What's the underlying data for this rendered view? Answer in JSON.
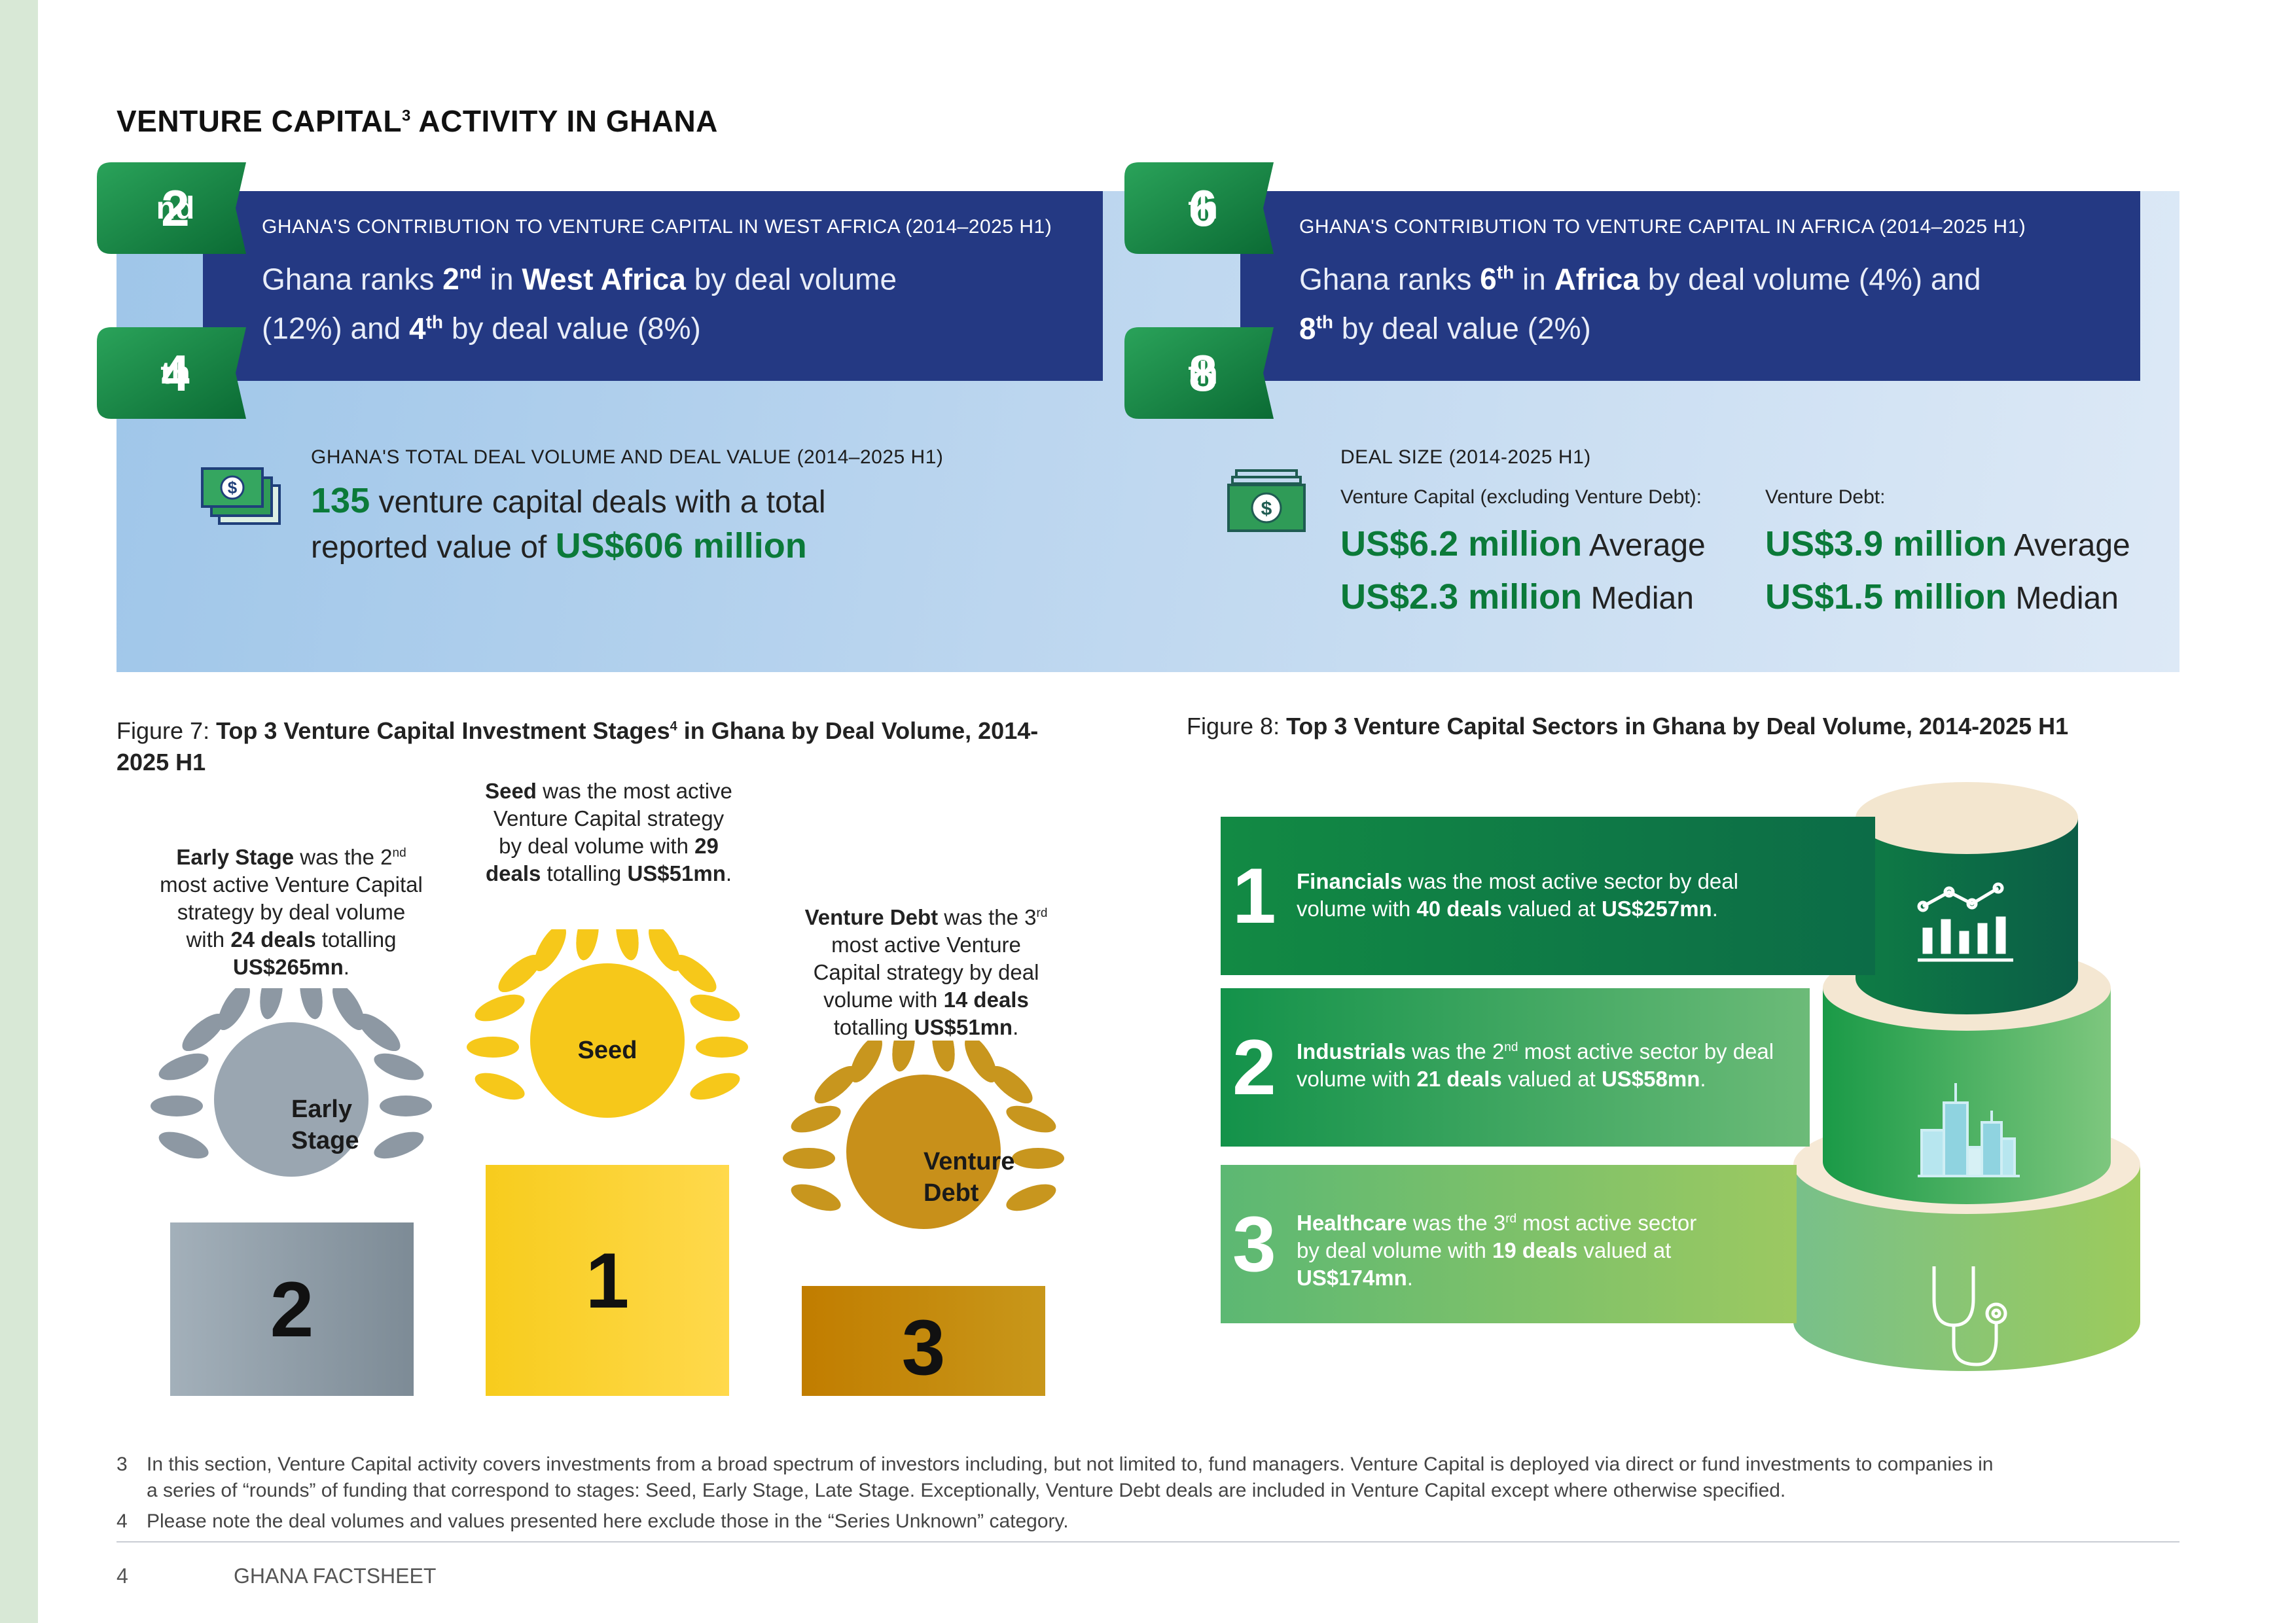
{
  "page": {
    "title": "VENTURE CAPITAL",
    "title_sup": "3",
    "title_rest": " ACTIVITY IN GHANA",
    "page_number": "4",
    "footer_label": "GHANA FACTSHEET"
  },
  "colors": {
    "navy": "#243983",
    "green": "#1a8a48",
    "gold": "#c8961e",
    "silver": "#8d98a3"
  },
  "west_africa": {
    "rank1": "2",
    "rank1_sup": "nd",
    "rank2": "4",
    "rank2_sup": "th",
    "header": "GHANA'S CONTRIBUTION TO VENTURE CAPITAL IN WEST AFRICA (2014–2025 H1)",
    "t1": "Ghana ranks ",
    "t2": "2",
    "t2_sup": "nd",
    "t3": " in ",
    "t4": "West Africa",
    "t5": " by deal volume",
    "t6": "(12%) and ",
    "t7": "4",
    "t7_sup": "th",
    "t8": " by deal value (8%)"
  },
  "africa": {
    "rank1": "6",
    "rank1_sup": "th",
    "rank2": "8",
    "rank2_sup": "th",
    "header": "GHANA'S CONTRIBUTION TO VENTURE CAPITAL IN AFRICA (2014–2025 H1)",
    "t1": "Ghana ranks ",
    "t2": "6",
    "t2_sup": "th",
    "t3": " in ",
    "t4": "Africa",
    "t5": " by deal volume (4%) and",
    "t6": "8",
    "t6_sup": "th",
    "t7": " by deal value (2%)"
  },
  "totals": {
    "icon": "money-stack-icon",
    "header": "GHANA'S TOTAL DEAL VOLUME AND DEAL VALUE (2014–2025 H1)",
    "count": "135",
    "line1": " venture capital deals with a total",
    "line2": "reported value of ",
    "value": "US$606 million"
  },
  "deal_size": {
    "icon": "banknote-icon",
    "header": "DEAL SIZE (2014-2025 H1)",
    "vc_label": "Venture Capital (excluding Venture Debt):",
    "vc_avg": "US$6.2 million",
    "vc_avg_label": " Average",
    "vc_med": "US$2.3 million",
    "vc_med_label": " Median",
    "vd_label": "Venture Debt:",
    "vd_avg": "US$3.9 million",
    "vd_avg_label": " Average",
    "vd_med": "US$1.5 million",
    "vd_med_label": " Median"
  },
  "figure7": {
    "prefix": "Figure 7: ",
    "title": "Top 3 Venture Capital Investment Stages",
    "sup": "4",
    "title2": " in Ghana by Deal Volume, 2014-",
    "title3": "2025 H1",
    "stages": [
      {
        "name": "Early Stage",
        "wreath_line1": "Early",
        "wreath_line2": "Stage",
        "rank": "2",
        "d1": "Early Stage",
        "d2": " was the 2",
        "d2_sup": "nd",
        "d3": "most active Venture Capital",
        "d4": "strategy by deal volume",
        "d5": "with ",
        "d6": "24 deals",
        "d7": " totalling",
        "d8": "US$265mn",
        "d9": "."
      },
      {
        "name": "Seed",
        "wreath_line1": "Seed",
        "rank": "1",
        "d1": "Seed",
        "d2": " was the most active",
        "d3": "Venture Capital strategy",
        "d4": "by deal volume with ",
        "d5": "29",
        "d6": "deals",
        "d7": " totalling ",
        "d8": "US$51mn",
        "d9": "."
      },
      {
        "name": "Venture Debt",
        "wreath_line1": "Venture",
        "wreath_line2": "Debt",
        "rank": "3",
        "d1": "Venture Debt",
        "d2": " was the 3",
        "d2_sup": "rd",
        "d3": "most active Venture",
        "d4": "Capital strategy by deal",
        "d5": "volume with ",
        "d6": "14 deals",
        "d7": "totalling ",
        "d8": "US$51mn",
        "d9": "."
      }
    ]
  },
  "figure8": {
    "prefix": "Figure 8: ",
    "title": "Top 3 Venture Capital Sectors in Ghana by Deal Volume, 2014-2025 H1",
    "sectors": [
      {
        "rank": "1",
        "icon": "chart-growth-icon",
        "a": "Financials",
        "b": " was the most active sector by deal",
        "c": "volume with ",
        "d": "40 deals",
        "e": " valued at ",
        "f": "US$257mn",
        "g": "."
      },
      {
        "rank": "2",
        "icon": "city-buildings-icon",
        "a": "Industrials",
        "b": " was the 2",
        "b_sup": "nd",
        "b2": " most active sector by deal",
        "c": "volume with ",
        "d": "21 deals",
        "e": " valued at ",
        "f": "US$58mn",
        "g": "."
      },
      {
        "rank": "3",
        "icon": "stethoscope-icon",
        "a": "Healthcare",
        "b": " was the 3",
        "b_sup": "rd",
        "b2": " most active sector",
        "c": "by deal volume with ",
        "d": "19 deals",
        "e": " valued at",
        "f": "US$174mn",
        "g": "."
      }
    ]
  },
  "footnotes": [
    {
      "num": "3",
      "line1": "In this section, Venture Capital activity covers investments from a broad spectrum of investors including, but not limited to, fund managers. Venture Capital is deployed via direct or fund investments to companies in",
      "line2": "a series of “rounds” of funding that correspond to stages: Seed, Early Stage, Late Stage.  Exceptionally, Venture Debt deals are included in Venture Capital except where otherwise specified."
    },
    {
      "num": "4",
      "line1": "Please note the deal volumes and values presented here exclude those in the “Series Unknown” category."
    }
  ]
}
